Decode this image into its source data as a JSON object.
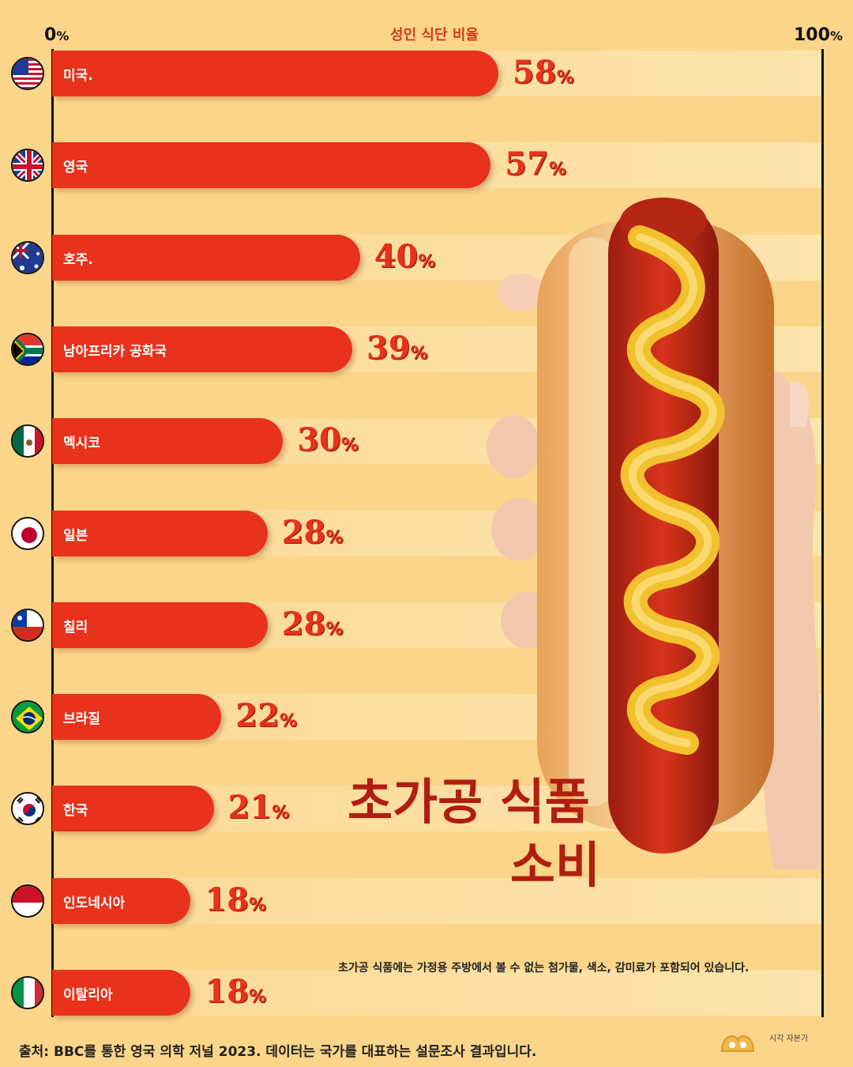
{
  "chart_data": {
    "type": "bar",
    "title": "성인 식단 비율",
    "xlim": [
      0,
      100
    ],
    "x_tick_labels": [
      {
        "number": "0",
        "unit": "%"
      },
      {
        "number": "100",
        "unit": "%"
      }
    ],
    "percent_sign": "%",
    "categories": [
      "미국.",
      "영국",
      "호주.",
      "남아프리카 공화국",
      "멕시코",
      "일본",
      "칠리",
      "브라질",
      "한국",
      "인도네시아",
      "이탈리아"
    ],
    "values": [
      58,
      57,
      40,
      39,
      30,
      28,
      28,
      22,
      21,
      18,
      18
    ],
    "bar_color": "#e8321c"
  },
  "headline": {
    "line1": "초가공 식품",
    "line2": "소비"
  },
  "note": "초가공 식품에는 가정용 주방에서 볼 수 없는 첨가물, 색소, 감미료가 포함되어 있습니다.",
  "source": "출처: BBC를 통한 영국 의학 저널 2023. 데이터는 국가를 대표하는 설문조사 결과입니다.",
  "logo_text": "시각 자본가",
  "flags": [
    "usa-flag-icon",
    "uk-flag-icon",
    "australia-flag-icon",
    "south-africa-flag-icon",
    "mexico-flag-icon",
    "japan-flag-icon",
    "chile-flag-icon",
    "brazil-flag-icon",
    "korea-flag-icon",
    "indonesia-flag-icon",
    "italy-flag-icon"
  ]
}
